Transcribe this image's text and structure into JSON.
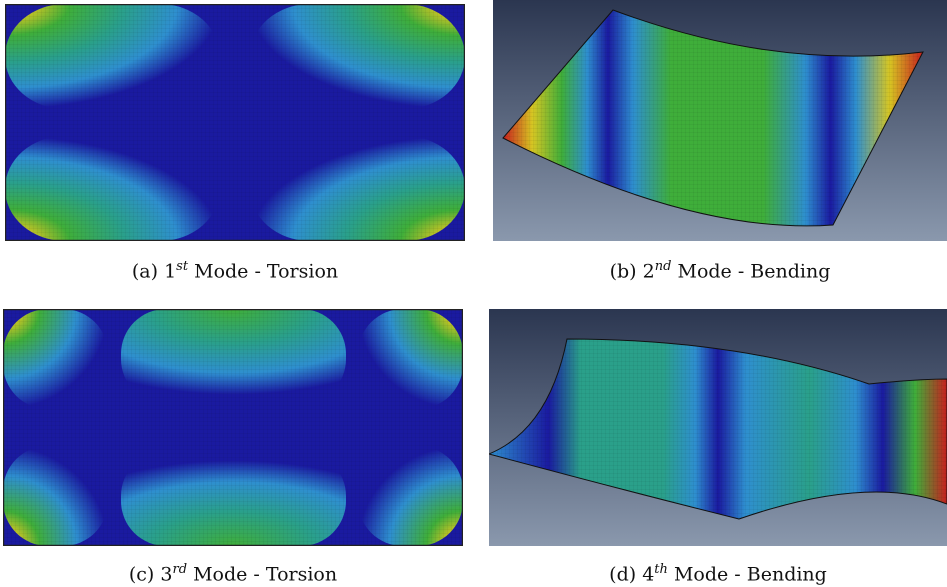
{
  "figure": {
    "panels": [
      {
        "label": "(a)",
        "ordinal": "1",
        "suffix": "st",
        "rest": "Mode - Torsion",
        "mode_type": "torsion",
        "mode_number": 1
      },
      {
        "label": "(b)",
        "ordinal": "2",
        "suffix": "nd",
        "rest": "Mode - Bending",
        "mode_type": "bending",
        "mode_number": 2
      },
      {
        "label": "(c)",
        "ordinal": "3",
        "suffix": "rd",
        "rest": "Mode - Torsion",
        "mode_type": "torsion",
        "mode_number": 3
      },
      {
        "label": "(d)",
        "ordinal": "4",
        "suffix": "th",
        "rest": "Mode - Bending",
        "mode_type": "bending",
        "mode_number": 4
      }
    ],
    "colors": {
      "contour_min": "#1a1aa0",
      "contour_low": "#2e8fcf",
      "contour_mid": "#2aa08a",
      "contour_midhigh": "#3fae3a",
      "contour_high": "#d6c623",
      "contour_max": "#c81e1e",
      "viewport_top": "#2b3650",
      "viewport_bottom": "#8a98ad"
    }
  }
}
